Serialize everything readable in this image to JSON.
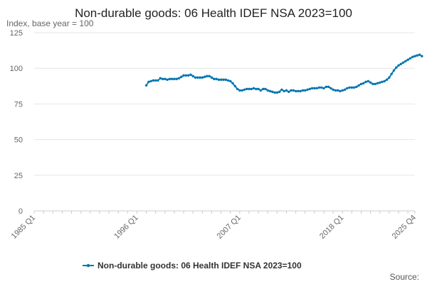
{
  "chart_data": {
    "type": "line",
    "title": "Non-durable goods: 06 Health IDEF NSA 2023=100",
    "ylabel": "Index, base year = 100",
    "ylim": [
      0,
      125
    ],
    "yticks": [
      0,
      25,
      50,
      75,
      100,
      125
    ],
    "x_start": "1985 Q1",
    "x_end": "2025 Q4",
    "xtick_labels": [
      "1985 Q1",
      "1996 Q1",
      "2007 Q1",
      "2018 Q1",
      "2025 Q4"
    ],
    "xtick_index": [
      0,
      44,
      88,
      132,
      163
    ],
    "series": [
      {
        "name": "Non-durable goods: 06 Health IDEF NSA 2023=100",
        "color": "#0075b0",
        "start": "1997 Q1",
        "start_index": 48,
        "values": [
          88,
          90.5,
          91,
          91.5,
          91.5,
          91.5,
          93,
          92.5,
          92.5,
          92,
          92.5,
          92.5,
          92.5,
          92.5,
          93,
          94,
          95,
          95,
          95,
          95.5,
          94.5,
          93.5,
          93.5,
          93.5,
          93.5,
          94,
          94.5,
          94.5,
          93.5,
          92.5,
          92.5,
          92,
          92,
          92,
          92,
          91.5,
          91,
          89.5,
          87.5,
          85.5,
          84.5,
          84.5,
          85,
          85.5,
          85.5,
          85.5,
          86,
          85.5,
          85.5,
          84.5,
          85.5,
          85.5,
          84.5,
          84,
          83.5,
          83,
          83,
          83.5,
          85,
          84,
          84.5,
          83.5,
          84.5,
          84.5,
          84,
          84,
          84,
          84.5,
          84.5,
          85,
          85.5,
          86,
          86,
          86,
          86.5,
          86.5,
          86,
          87,
          87,
          86,
          85,
          84.5,
          84.5,
          84,
          84.5,
          85,
          86,
          86.5,
          86.5,
          86.5,
          87,
          88,
          89,
          89.5,
          90.5,
          91,
          90,
          89,
          89,
          89.5,
          90,
          90.5,
          91,
          92,
          93.5,
          96,
          98.5,
          100.5,
          102,
          103,
          104,
          105,
          106,
          107,
          108,
          108.5,
          109,
          109.5,
          108.5
        ]
      }
    ],
    "legend": "bottom-center"
  },
  "source_label": "Source:"
}
